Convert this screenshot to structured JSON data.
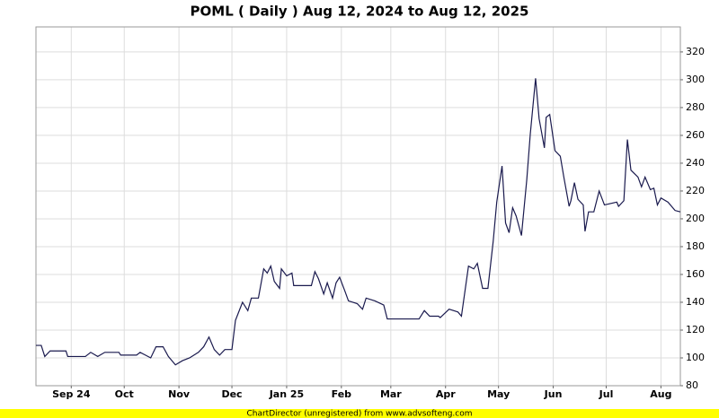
{
  "chart_data": {
    "type": "line",
    "title": "POML ( Daily ) Aug 12, 2024 to Aug 12, 2025",
    "x": [
      "2024-08-12",
      "2024-08-15",
      "2024-08-17",
      "2024-08-20",
      "2024-08-29",
      "2024-08-30",
      "2024-09-09",
      "2024-09-12",
      "2024-09-16",
      "2024-09-20",
      "2024-09-28",
      "2024-09-29",
      "2024-10-08",
      "2024-10-10",
      "2024-10-13",
      "2024-10-16",
      "2024-10-19",
      "2024-10-23",
      "2024-10-26",
      "2024-10-30",
      "2024-11-03",
      "2024-11-07",
      "2024-11-12",
      "2024-11-15",
      "2024-11-18",
      "2024-11-21",
      "2024-11-24",
      "2024-11-27",
      "2024-12-01",
      "2024-12-03",
      "2024-12-07",
      "2024-12-10",
      "2024-12-12",
      "2024-12-16",
      "2024-12-19",
      "2024-12-21",
      "2024-12-23",
      "2024-12-25",
      "2024-12-28",
      "2024-12-29",
      "2025-01-01",
      "2025-01-04",
      "2025-01-05",
      "2025-01-12",
      "2025-01-15",
      "2025-01-17",
      "2025-01-19",
      "2025-01-22",
      "2025-01-24",
      "2025-01-27",
      "2025-01-29",
      "2025-01-31",
      "2025-02-03",
      "2025-02-05",
      "2025-02-10",
      "2025-02-13",
      "2025-02-15",
      "2025-02-20",
      "2025-02-25",
      "2025-02-27",
      "2025-03-13",
      "2025-03-17",
      "2025-03-20",
      "2025-03-23",
      "2025-03-28",
      "2025-03-29",
      "2025-04-03",
      "2025-04-08",
      "2025-04-10",
      "2025-04-14",
      "2025-04-17",
      "2025-04-19",
      "2025-04-22",
      "2025-04-25",
      "2025-04-28",
      "2025-04-30",
      "2025-05-03",
      "2025-05-05",
      "2025-05-07",
      "2025-05-09",
      "2025-05-11",
      "2025-05-14",
      "2025-05-17",
      "2025-05-19",
      "2025-05-22",
      "2025-05-24",
      "2025-05-27",
      "2025-05-28",
      "2025-05-30",
      "2025-06-02",
      "2025-06-05",
      "2025-06-07",
      "2025-06-10",
      "2025-06-11",
      "2025-06-13",
      "2025-06-15",
      "2025-06-18",
      "2025-06-19",
      "2025-06-21",
      "2025-06-24",
      "2025-06-27",
      "2025-06-30",
      "2025-07-07",
      "2025-07-08",
      "2025-07-11",
      "2025-07-13",
      "2025-07-15",
      "2025-07-19",
      "2025-07-21",
      "2025-07-23",
      "2025-07-26",
      "2025-07-28",
      "2025-07-30",
      "2025-08-01",
      "2025-08-05",
      "2025-08-09",
      "2025-08-12"
    ],
    "series": [
      {
        "name": "POML",
        "color": "#1a1a4e",
        "values": [
          109,
          109,
          101,
          105,
          105,
          101,
          101,
          104,
          101,
          104,
          104,
          102,
          102,
          104,
          102,
          100,
          108,
          108,
          101,
          95,
          98,
          100,
          104,
          108,
          115,
          106,
          102,
          106,
          106,
          127,
          140,
          134,
          143,
          143,
          164,
          161,
          166,
          155,
          150,
          164,
          159,
          161,
          152,
          152,
          152,
          162,
          157,
          146,
          154,
          143,
          154,
          158,
          148,
          141,
          139,
          135,
          143,
          141,
          138,
          128,
          128,
          128,
          134,
          130,
          130,
          129,
          135,
          133,
          130,
          166,
          164,
          168,
          150,
          150,
          184,
          212,
          238,
          197,
          190,
          208,
          202,
          188,
          228,
          261,
          301,
          272,
          251,
          273,
          275,
          249,
          245,
          230,
          209,
          213,
          226,
          214,
          210,
          191,
          205,
          205,
          220,
          210,
          212,
          209,
          213,
          257,
          235,
          230,
          223,
          230,
          221,
          222,
          210,
          215,
          212,
          206,
          205
        ]
      }
    ],
    "xlim": [
      "2024-08-12",
      "2025-08-12"
    ],
    "xticks": [
      {
        "value": "2024-09-01",
        "label": "Sep 24"
      },
      {
        "value": "2024-10-01",
        "label": "Oct"
      },
      {
        "value": "2024-11-01",
        "label": "Nov"
      },
      {
        "value": "2024-12-01",
        "label": "Dec"
      },
      {
        "value": "2025-01-01",
        "label": "Jan 25"
      },
      {
        "value": "2025-02-01",
        "label": "Feb"
      },
      {
        "value": "2025-03-01",
        "label": "Mar"
      },
      {
        "value": "2025-04-01",
        "label": "Apr"
      },
      {
        "value": "2025-05-01",
        "label": "May"
      },
      {
        "value": "2025-06-01",
        "label": "Jun"
      },
      {
        "value": "2025-07-01",
        "label": "Jul"
      },
      {
        "value": "2025-08-01",
        "label": "Aug"
      }
    ],
    "ylim": [
      80,
      338
    ],
    "yticks": [
      80,
      100,
      120,
      140,
      160,
      180,
      200,
      220,
      240,
      260,
      280,
      300,
      320
    ],
    "grid": true
  },
  "footer": "ChartDirector (unregistered) from www.advsofteng.com"
}
